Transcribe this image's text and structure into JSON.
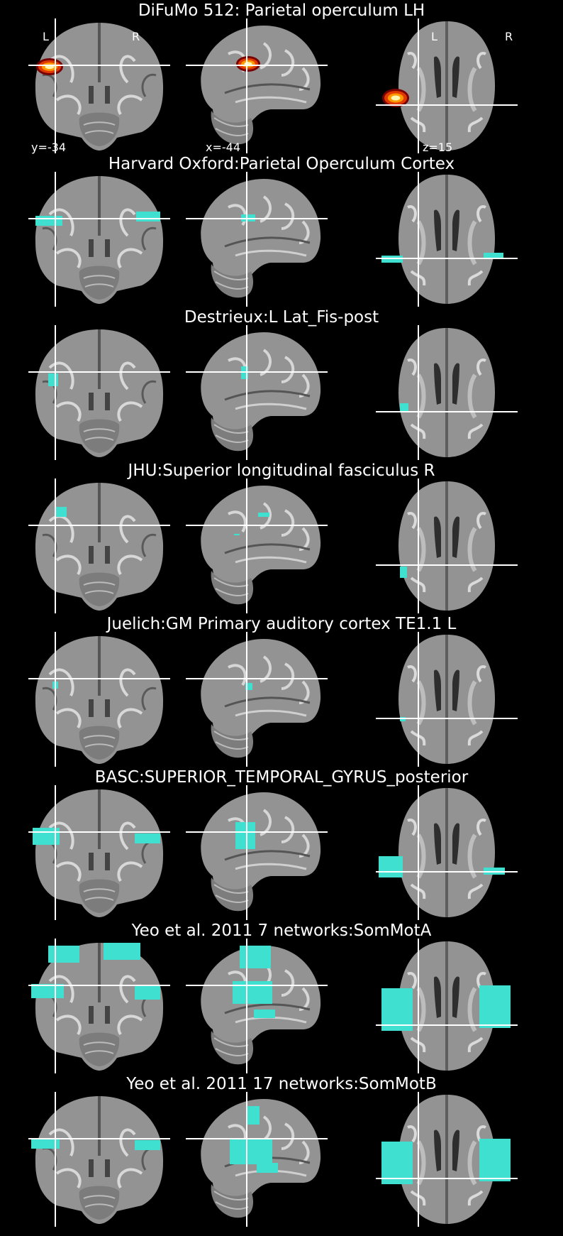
{
  "colors": {
    "background": "#000000",
    "overlay": "#40e0d0",
    "crosshair": "#ffffff",
    "brain": "#8f8f8f"
  },
  "header": {
    "orientation_left": "L",
    "orientation_right": "R",
    "coords": {
      "coronal": "y=-34",
      "sagittal": "x=-44",
      "axial": "z=15"
    }
  },
  "panels": [
    {
      "title": "DiFuMo 512: Parietal operculum LH",
      "overlay": "hot"
    },
    {
      "title": "Harvard Oxford:Parietal Operculum Cortex",
      "overlay": "cyan"
    },
    {
      "title": "Destrieux:L Lat_Fis-post",
      "overlay": "cyan"
    },
    {
      "title": "JHU:Superior longitudinal fasciculus R",
      "overlay": "cyan"
    },
    {
      "title": "Juelich:GM Primary auditory cortex TE1.1 L",
      "overlay": "cyan"
    },
    {
      "title": "BASC:SUPERIOR_TEMPORAL_GYRUS_posterior",
      "overlay": "cyan"
    },
    {
      "title": "Yeo et al. 2011 7 networks:SomMotA",
      "overlay": "cyan"
    },
    {
      "title": "Yeo et al. 2011 17 networks:SomMotB",
      "overlay": "cyan"
    }
  ]
}
